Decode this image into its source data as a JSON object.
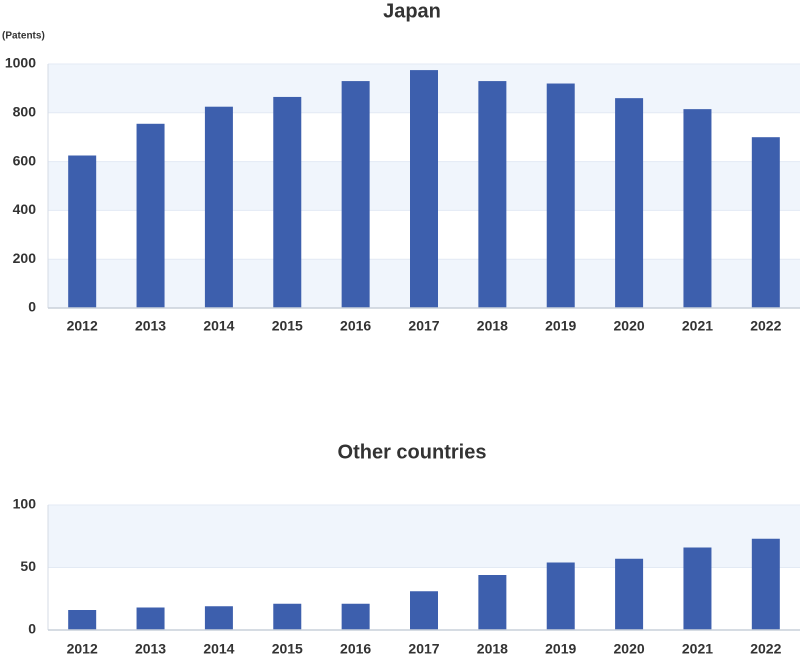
{
  "chart_data": [
    {
      "type": "bar",
      "title": "Japan",
      "y_label": "(Patents)",
      "categories": [
        "2012",
        "2013",
        "2014",
        "2015",
        "2016",
        "2017",
        "2018",
        "2019",
        "2020",
        "2021",
        "2022"
      ],
      "values": [
        625,
        755,
        825,
        865,
        930,
        975,
        930,
        920,
        860,
        815,
        700
      ],
      "color": "#3d5fad",
      "ylim": [
        0,
        1000
      ],
      "yticks": [
        0,
        200,
        400,
        600,
        800,
        1000
      ],
      "grid": true
    },
    {
      "type": "bar",
      "title": "Other countries",
      "categories": [
        "2012",
        "2013",
        "2014",
        "2015",
        "2016",
        "2017",
        "2018",
        "2019",
        "2020",
        "2021",
        "2022"
      ],
      "values": [
        16,
        18,
        19,
        21,
        21,
        31,
        44,
        54,
        57,
        66,
        73
      ],
      "color": "#3d5fad",
      "ylim": [
        0,
        100
      ],
      "yticks": [
        0,
        50,
        100
      ],
      "grid": true
    }
  ]
}
